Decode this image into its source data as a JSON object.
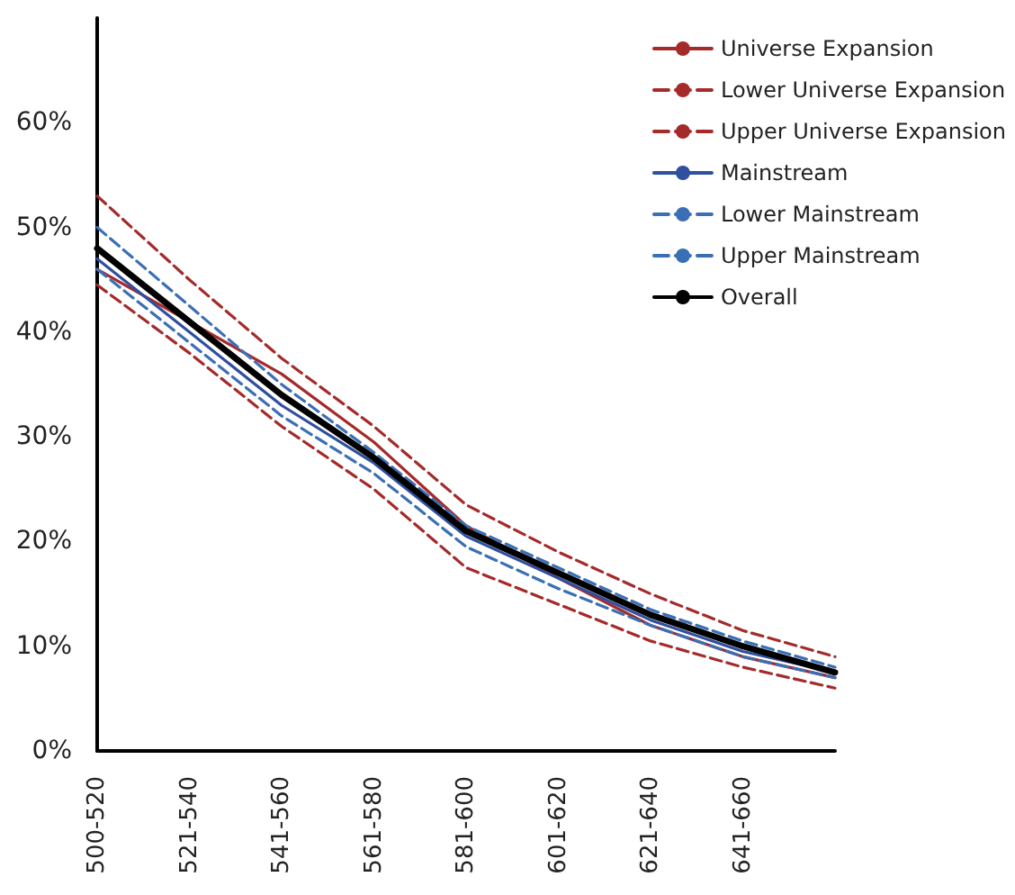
{
  "chart_data": {
    "type": "line",
    "categories": [
      "500-520",
      "521-540",
      "541-560",
      "561-580",
      "581-600",
      "601-620",
      "621-640",
      "641-660",
      null
    ],
    "series": [
      {
        "name": "Universe Expansion",
        "color": "#a52a2a",
        "line_style": "solid",
        "values": [
          46,
          41,
          36,
          29.5,
          21.5,
          16.5,
          12,
          9,
          7
        ]
      },
      {
        "name": "Lower Universe Expansion",
        "color": "#a52a2a",
        "line_style": "dashed",
        "values": [
          44.5,
          38,
          31,
          25,
          17.5,
          14,
          10.5,
          8,
          6
        ]
      },
      {
        "name": "Upper Universe Expansion",
        "color": "#a52a2a",
        "line_style": "dashed",
        "values": [
          53,
          45,
          37.5,
          31,
          23.5,
          19,
          15,
          11.5,
          9
        ]
      },
      {
        "name": "Mainstream",
        "color": "#2f4f9f",
        "line_style": "solid",
        "values": [
          47,
          40,
          33,
          27.5,
          20.5,
          16.5,
          12.5,
          9.5,
          7.5
        ]
      },
      {
        "name": "Lower Mainstream",
        "color": "#3b6fb5",
        "line_style": "dashed",
        "values": [
          46,
          39,
          32,
          26.5,
          19.5,
          15.5,
          12,
          9,
          7
        ]
      },
      {
        "name": "Upper Mainstream",
        "color": "#3b6fb5",
        "line_style": "dashed",
        "values": [
          50,
          42.5,
          35,
          28.5,
          21.5,
          17.5,
          13.5,
          10.5,
          8
        ]
      },
      {
        "name": "Overall",
        "color": "#000000",
        "line_style": "solid",
        "values": [
          48,
          41,
          34,
          28,
          21,
          17,
          13,
          10,
          7.5
        ]
      }
    ],
    "ylim": [
      0,
      70
    ],
    "yticks": [
      {
        "value": 0,
        "label": "0%"
      },
      {
        "value": 10,
        "label": "10%"
      },
      {
        "value": 20,
        "label": "20%"
      },
      {
        "value": 30,
        "label": "30%"
      },
      {
        "value": 40,
        "label": "40%"
      },
      {
        "value": 50,
        "label": "50%"
      },
      {
        "value": 60,
        "label": "60%"
      }
    ],
    "grid": false,
    "legend": "top right",
    "marker": "none"
  }
}
